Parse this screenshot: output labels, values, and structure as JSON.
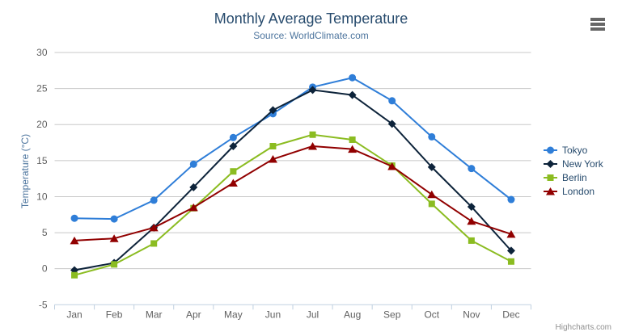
{
  "chart_data": {
    "type": "line",
    "title": "Monthly Average Temperature",
    "subtitle": "Source: WorldClimate.com",
    "xlabel": "",
    "ylabel": "Temperature (°C)",
    "ylim": [
      -5,
      30
    ],
    "ytick_step": 5,
    "grid": "horizontal",
    "legend_position": "right-middle",
    "categories": [
      "Jan",
      "Feb",
      "Mar",
      "Apr",
      "May",
      "Jun",
      "Jul",
      "Aug",
      "Sep",
      "Oct",
      "Nov",
      "Dec"
    ],
    "series": [
      {
        "name": "Tokyo",
        "marker": "circle",
        "color": "#2f7ed8",
        "values": [
          7.0,
          6.9,
          9.5,
          14.5,
          18.2,
          21.5,
          25.2,
          26.5,
          23.3,
          18.3,
          13.9,
          9.6
        ]
      },
      {
        "name": "New York",
        "marker": "diamond",
        "color": "#0d233a",
        "values": [
          -0.2,
          0.8,
          5.7,
          11.3,
          17.0,
          22.0,
          24.8,
          24.1,
          20.1,
          14.1,
          8.6,
          2.5
        ]
      },
      {
        "name": "Berlin",
        "marker": "square",
        "color": "#8bbc21",
        "values": [
          -0.9,
          0.6,
          3.5,
          8.4,
          13.5,
          17.0,
          18.6,
          17.9,
          14.3,
          9.0,
          3.9,
          1.0
        ]
      },
      {
        "name": "London",
        "marker": "triangle",
        "color": "#910000",
        "values": [
          3.9,
          4.2,
          5.7,
          8.5,
          11.9,
          15.2,
          17.0,
          16.6,
          14.2,
          10.3,
          6.6,
          4.8
        ]
      }
    ]
  },
  "credits": {
    "label": "Highcharts.com"
  },
  "menu": {
    "icon": "hamburger-menu-icon"
  },
  "style": {
    "background": "#ffffff",
    "title_color": "#274b6d",
    "subtitle_color": "#4d759e",
    "axis_title_color": "#4d759e",
    "axis_label_color": "#606060",
    "grid_color": "#c8c8c8",
    "axis_line_color": "#c0d0e0",
    "legend_text_color": "#274b6d",
    "credits_color": "#909090",
    "menu_icon_color": "#666666"
  }
}
